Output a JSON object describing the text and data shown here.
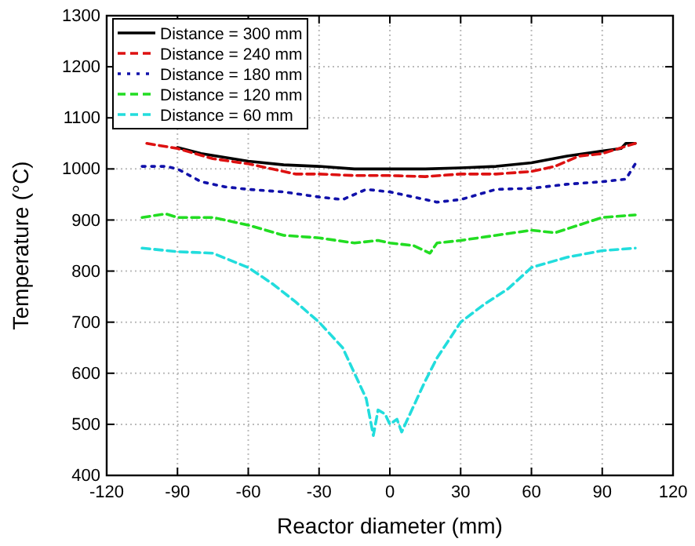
{
  "chart_data": {
    "type": "line",
    "xlabel": "Reactor diameter (mm)",
    "ylabel": "Temperature (°C)",
    "xlim": [
      -120,
      120
    ],
    "xticks": [
      -120,
      -90,
      -60,
      -30,
      0,
      30,
      60,
      90,
      120
    ],
    "ylim": [
      400,
      1300
    ],
    "yticks": [
      400,
      500,
      600,
      700,
      800,
      900,
      1000,
      1100,
      1200,
      1300
    ],
    "grid": true,
    "legend": "top left",
    "marker": "none",
    "series": [
      {
        "name": "Distance = 300 mm",
        "color": "#000000",
        "line_style": "solid",
        "x": [
          -90,
          -80,
          -60,
          -45,
          -30,
          -15,
          0,
          15,
          30,
          45,
          60,
          75,
          90,
          98,
          100,
          104
        ],
        "values": [
          1042,
          1030,
          1015,
          1008,
          1005,
          1000,
          1000,
          1000,
          1002,
          1005,
          1012,
          1025,
          1035,
          1040,
          1050,
          1050
        ]
      },
      {
        "name": "Distance = 240 mm",
        "color": "#dd1111",
        "line_style": "dashed",
        "x": [
          -103,
          -90,
          -75,
          -60,
          -50,
          -40,
          -30,
          -15,
          0,
          15,
          30,
          45,
          60,
          70,
          80,
          90,
          104
        ],
        "values": [
          1050,
          1040,
          1020,
          1010,
          1000,
          990,
          990,
          987,
          987,
          985,
          990,
          990,
          995,
          1005,
          1025,
          1030,
          1050
        ]
      },
      {
        "name": "Distance = 180 mm",
        "color": "#1111aa",
        "line_style": "dotted",
        "x": [
          -105,
          -95,
          -90,
          -80,
          -70,
          -60,
          -45,
          -30,
          -20,
          -10,
          0,
          10,
          20,
          30,
          45,
          60,
          75,
          90,
          100,
          104
        ],
        "values": [
          1005,
          1005,
          1000,
          975,
          965,
          960,
          955,
          945,
          940,
          960,
          955,
          945,
          935,
          940,
          960,
          962,
          970,
          975,
          980,
          1010
        ]
      },
      {
        "name": "Distance = 120 mm",
        "color": "#22dd22",
        "line_style": "dashed",
        "x": [
          -105,
          -95,
          -90,
          -75,
          -60,
          -45,
          -30,
          -15,
          -5,
          0,
          10,
          17,
          20,
          30,
          45,
          60,
          70,
          80,
          90,
          104
        ],
        "values": [
          905,
          912,
          905,
          905,
          890,
          870,
          865,
          855,
          860,
          855,
          850,
          835,
          855,
          860,
          870,
          880,
          875,
          890,
          905,
          910
        ]
      },
      {
        "name": "Distance = 60 mm",
        "color": "#22dddd",
        "line_style": "dashed",
        "x": [
          -105,
          -90,
          -75,
          -60,
          -50,
          -40,
          -30,
          -20,
          -15,
          -10,
          -7,
          -5,
          -2,
          0,
          3,
          5,
          10,
          15,
          20,
          30,
          40,
          50,
          60,
          75,
          90,
          104
        ],
        "values": [
          845,
          838,
          835,
          807,
          776,
          740,
          700,
          650,
          600,
          550,
          478,
          528,
          520,
          500,
          510,
          485,
          535,
          585,
          630,
          700,
          735,
          765,
          807,
          827,
          840,
          845
        ]
      }
    ]
  }
}
